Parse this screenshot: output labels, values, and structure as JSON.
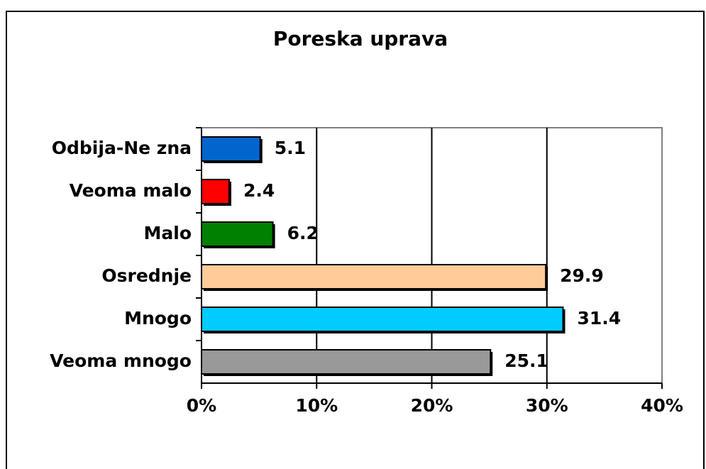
{
  "chart_data": {
    "type": "bar",
    "orientation": "horizontal",
    "title": "Poreska uprava",
    "categories": [
      "Odbija-Ne zna",
      "Veoma malo",
      "Malo",
      "Osrednje",
      "Mnogo",
      "Veoma mnogo"
    ],
    "values": [
      5.1,
      2.4,
      6.2,
      29.9,
      31.4,
      25.1
    ],
    "colors": [
      "#0066cc",
      "#ff0000",
      "#008000",
      "#ffcc99",
      "#00ccff",
      "#999999"
    ],
    "xlim": [
      0,
      40
    ],
    "xticks": [
      {
        "value": 0,
        "label": "0%"
      },
      {
        "value": 10,
        "label": "10%"
      },
      {
        "value": 20,
        "label": "20%"
      },
      {
        "value": 30,
        "label": "30%"
      },
      {
        "value": 40,
        "label": "40%"
      }
    ],
    "grid": true
  }
}
